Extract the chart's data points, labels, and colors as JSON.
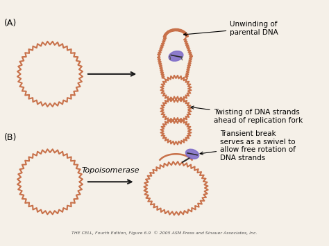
{
  "bg_color": "#f5f0e8",
  "dna_color": "#c8714a",
  "arrow_color": "#1a1a1a",
  "helicase_color": "#7b68c8",
  "label_A": "(A)",
  "label_B": "(B)",
  "arrow_label_B": "Topoisomerase",
  "annotation_1a": "Unwinding of\nparental DNA",
  "annotation_1b": "Twisting of DNA strands\nahead of replication fork",
  "annotation_2": "Transient break\nserves as a swivel to\nallow free rotation of\nDNA strands",
  "footer": "THE CELL, Fourth Edition, Figure 6.9  © 2005 ASM Press and Sinauer Associates, Inc.",
  "fig_width": 4.74,
  "fig_height": 3.55
}
